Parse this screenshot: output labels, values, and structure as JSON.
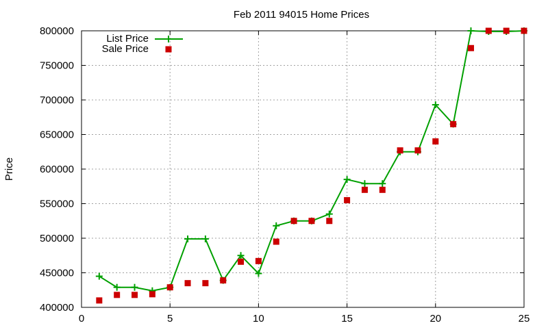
{
  "chart_data": {
    "type": "line",
    "title": "Feb 2011 94015 Home Prices",
    "xlabel": "",
    "ylabel": "Price",
    "xlim": [
      0,
      25
    ],
    "ylim": [
      400000,
      800000
    ],
    "xticks": [
      0,
      5,
      10,
      15,
      20,
      25
    ],
    "yticks": [
      400000,
      450000,
      500000,
      550000,
      600000,
      650000,
      700000,
      750000,
      800000
    ],
    "grid": true,
    "legend_position": "top-left",
    "x": [
      1,
      2,
      3,
      4,
      5,
      6,
      7,
      8,
      9,
      10,
      11,
      12,
      13,
      14,
      15,
      16,
      17,
      18,
      19,
      20,
      21,
      22,
      23,
      24,
      25
    ],
    "series": [
      {
        "name": "List Price",
        "style": "lines+points",
        "marker": "plus",
        "color": "#00a000",
        "values": [
          445000,
          429000,
          429000,
          424000,
          429000,
          499000,
          499000,
          439000,
          475000,
          449000,
          518000,
          525000,
          525000,
          535000,
          585000,
          579000,
          579000,
          625000,
          625000,
          693000,
          665000,
          800000,
          799000,
          799000,
          800000
        ]
      },
      {
        "name": "Sale Price",
        "style": "points",
        "marker": "square",
        "color": "#cc0000",
        "values": [
          410000,
          418000,
          418000,
          419000,
          429000,
          435000,
          435000,
          439000,
          466000,
          467000,
          495000,
          525000,
          525000,
          525000,
          555000,
          570000,
          570000,
          627000,
          627000,
          640000,
          665000,
          775000,
          800000,
          800000,
          800000
        ]
      }
    ]
  }
}
